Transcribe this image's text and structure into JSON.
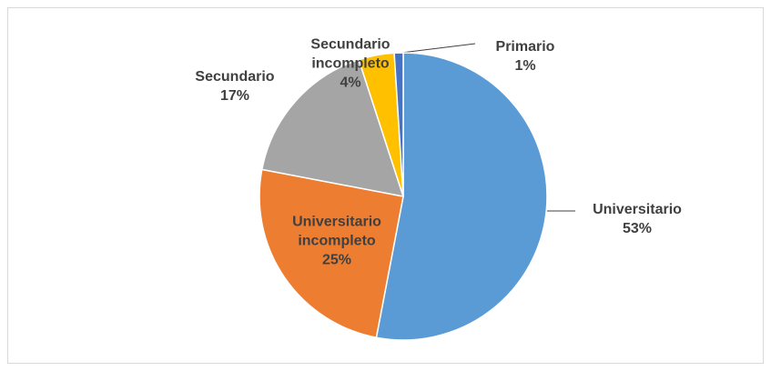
{
  "chart_data": {
    "type": "pie",
    "categories": [
      "Universitario",
      "Universitario incompleto",
      "Secundario",
      "Secundario incompleto",
      "Primario"
    ],
    "values": [
      53,
      25,
      17,
      4,
      1
    ],
    "value_labels": [
      "53%",
      "25%",
      "17%",
      "4%",
      "1%"
    ],
    "colors": [
      "#5b9bd5",
      "#ed7d31",
      "#a5a5a5",
      "#ffc000",
      "#4472c4"
    ]
  }
}
